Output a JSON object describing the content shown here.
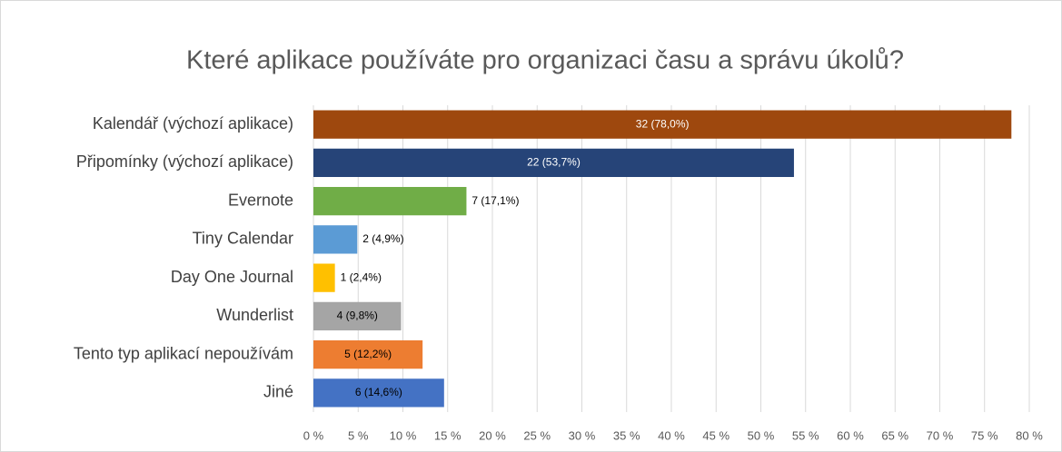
{
  "chart_data": {
    "type": "bar",
    "orientation": "horizontal",
    "title": "Které aplikace používáte pro organizaci času a správu úkolů?",
    "categories": [
      "Kalendář (výchozí aplikace)",
      "Připomínky (výchozí aplikace)",
      "Evernote",
      "Tiny Calendar",
      "Day One Journal",
      "Wunderlist",
      "Tento typ aplikací nepoužívám",
      "Jiné"
    ],
    "values": [
      78.0,
      53.7,
      17.1,
      4.9,
      2.4,
      9.8,
      12.2,
      14.6
    ],
    "value_labels": [
      "32 (78,0%)",
      "22 (53,7%)",
      "7 (17,1%)",
      "2 (4,9%)",
      "1 (2,4%)",
      "4 (9,8%)",
      "5 (12,2%)",
      "6 (14,6%)"
    ],
    "colors": [
      "#9e480e",
      "#264478",
      "#70ad47",
      "#5b9bd5",
      "#ffc000",
      "#a5a5a5",
      "#ed7d31",
      "#4472c4"
    ],
    "label_position": [
      "inside",
      "inside",
      "outside",
      "outside",
      "outside",
      "inside",
      "inside",
      "inside"
    ],
    "xlim": [
      0,
      80
    ],
    "xticks": [
      {
        "value": 0,
        "label": "0 %"
      },
      {
        "value": 5,
        "label": "5 %"
      },
      {
        "value": 10,
        "label": "10 %"
      },
      {
        "value": 15,
        "label": "15 %"
      },
      {
        "value": 20,
        "label": "20 %"
      },
      {
        "value": 25,
        "label": "25 %"
      },
      {
        "value": 30,
        "label": "30 %"
      },
      {
        "value": 35,
        "label": "35 %"
      },
      {
        "value": 40,
        "label": "40 %"
      },
      {
        "value": 45,
        "label": "45 %"
      },
      {
        "value": 50,
        "label": "50 %"
      },
      {
        "value": 55,
        "label": "55 %"
      },
      {
        "value": 60,
        "label": "60 %"
      },
      {
        "value": 65,
        "label": "65 %"
      },
      {
        "value": 70,
        "label": "70 %"
      },
      {
        "value": 75,
        "label": "75 %"
      },
      {
        "value": 80,
        "label": "80 %"
      }
    ],
    "grid": true
  }
}
